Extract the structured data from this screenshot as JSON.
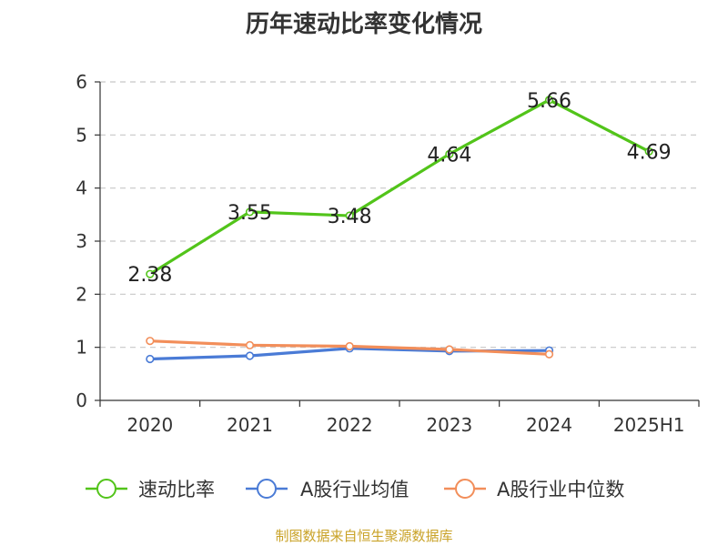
{
  "chart_data": {
    "type": "line",
    "title": "历年速动比率变化情况",
    "categories": [
      "2020",
      "2021",
      "2022",
      "2023",
      "2024",
      "2025H1"
    ],
    "ylim": [
      0,
      6
    ],
    "yticks": [
      0,
      1,
      2,
      3,
      4,
      5,
      6
    ],
    "grid": true,
    "legend_position": "bottom",
    "series": [
      {
        "name": "速动比率",
        "color": "#52c41a",
        "values": [
          2.38,
          3.55,
          3.48,
          4.64,
          5.66,
          4.69
        ],
        "labels": [
          "2.38",
          "3.55",
          "3.48",
          "4.64",
          "5.66",
          "4.69"
        ],
        "show_labels": true
      },
      {
        "name": "A股行业均值",
        "color": "#4a7bd6",
        "values": [
          0.78,
          0.84,
          0.98,
          0.93,
          0.94,
          null
        ],
        "show_labels": false
      },
      {
        "name": "A股行业中位数",
        "color": "#f28e5a",
        "values": [
          1.12,
          1.04,
          1.02,
          0.96,
          0.87,
          null
        ],
        "show_labels": false
      }
    ]
  },
  "source": "制图数据来自恒生聚源数据库"
}
